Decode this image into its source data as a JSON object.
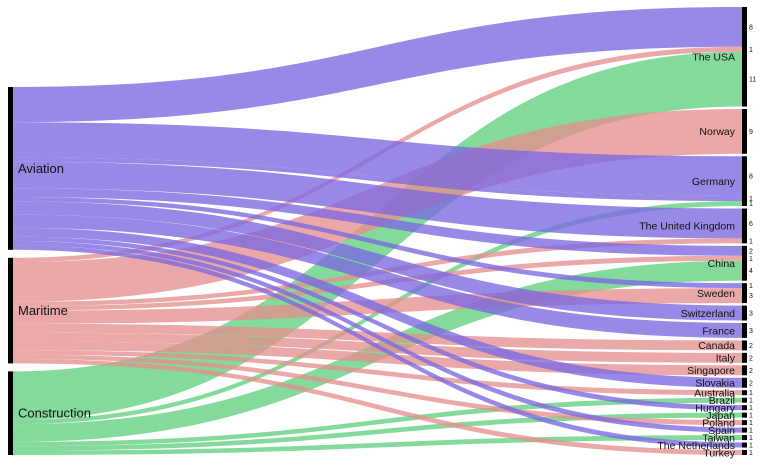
{
  "chart_data": {
    "type": "sankey",
    "title": "",
    "sources": [
      {
        "name": "Aviation",
        "color": "#7b68e0"
      },
      {
        "name": "Maritime",
        "color": "#e48f8f"
      },
      {
        "name": "Construction",
        "color": "#62cf7f"
      }
    ],
    "targets": [
      "The USA",
      "Norway",
      "Germany",
      "The United Kingdom",
      "China",
      "Sweden",
      "Switzerland",
      "France",
      "Canada",
      "Italy",
      "Singapore",
      "Slovakia",
      "Australia",
      "Brazil",
      "Hungary",
      "Japan",
      "Poland",
      "Spain",
      "Taiwan",
      "The Netherlands",
      "Turkey"
    ],
    "links": [
      {
        "source": "Aviation",
        "target": "The USA",
        "value": 8
      },
      {
        "source": "Maritime",
        "target": "The USA",
        "value": 1
      },
      {
        "source": "Construction",
        "target": "The USA",
        "value": 11
      },
      {
        "source": "Maritime",
        "target": "Norway",
        "value": 9
      },
      {
        "source": "Aviation",
        "target": "Germany",
        "value": 8
      },
      {
        "source": "Aviation",
        "target": "Germany",
        "value": 1
      },
      {
        "source": "Construction",
        "target": "Germany",
        "value": 1
      },
      {
        "source": "Aviation",
        "target": "The United Kingdom",
        "value": 6
      },
      {
        "source": "Maritime",
        "target": "The United Kingdom",
        "value": 1
      },
      {
        "source": "Aviation",
        "target": "China",
        "value": 2
      },
      {
        "source": "Maritime",
        "target": "China",
        "value": 1
      },
      {
        "source": "Construction",
        "target": "China",
        "value": 4
      },
      {
        "source": "Aviation",
        "target": "Sweden",
        "value": 1
      },
      {
        "source": "Maritime",
        "target": "Sweden",
        "value": 3
      },
      {
        "source": "Aviation",
        "target": "Switzerland",
        "value": 3
      },
      {
        "source": "Aviation",
        "target": "France",
        "value": 3
      },
      {
        "source": "Maritime",
        "target": "Canada",
        "value": 2
      },
      {
        "source": "Maritime",
        "target": "Italy",
        "value": 2
      },
      {
        "source": "Maritime",
        "target": "Singapore",
        "value": 2
      },
      {
        "source": "Aviation",
        "target": "Slovakia",
        "value": 2
      },
      {
        "source": "Maritime",
        "target": "Australia",
        "value": 1
      },
      {
        "source": "Construction",
        "target": "Brazil",
        "value": 1
      },
      {
        "source": "Aviation",
        "target": "Hungary",
        "value": 1
      },
      {
        "source": "Construction",
        "target": "Japan",
        "value": 1
      },
      {
        "source": "Maritime",
        "target": "Poland",
        "value": 1
      },
      {
        "source": "Aviation",
        "target": "Spain",
        "value": 1
      },
      {
        "source": "Construction",
        "target": "Taiwan",
        "value": 1
      },
      {
        "source": "Aviation",
        "target": "The Netherlands",
        "value": 1
      },
      {
        "source": "Maritime",
        "target": "Turkey",
        "value": 1
      }
    ]
  }
}
